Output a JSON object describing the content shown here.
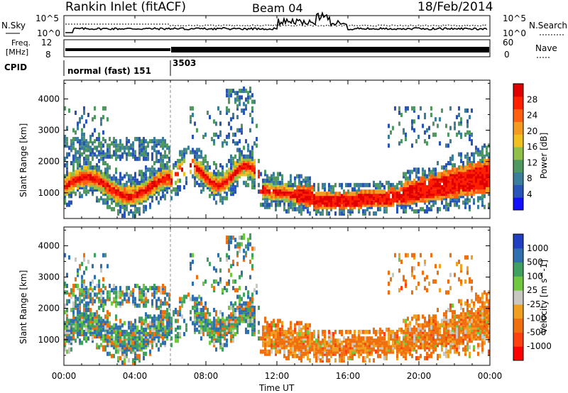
{
  "header": {
    "station": "Rankin Inlet (fitACF)",
    "beam": "Beam 04",
    "date": "18/Feb/2014"
  },
  "nsky_panel": {
    "left_label": "N.Sky",
    "right_label": "N.Search",
    "left_ticks": [
      "10^5",
      "10^0"
    ],
    "right_ticks": [
      "10^5",
      "10^0"
    ]
  },
  "freq_panel": {
    "left_label_1": "Freq.",
    "left_label_2": "[MHz]",
    "left_ticks": [
      "12",
      "8"
    ],
    "right_label": "Nave",
    "right_ticks": [
      "60",
      "0"
    ]
  },
  "cpid_panel": {
    "label": "CPID",
    "segments": [
      "normal (fast) 151",
      "3503"
    ]
  },
  "chart_data": [
    {
      "type": "heatmap",
      "title": "",
      "ylabel": "Slant Range [km]",
      "y_ticks": [
        "1000",
        "2000",
        "3000",
        "4000"
      ],
      "ylim": [
        180,
        4600
      ],
      "colorbar_label": "Power [dB]",
      "colorbar_ticks": [
        "4",
        "8",
        "12",
        "16",
        "20",
        "24",
        "28"
      ],
      "colorbar_colors": [
        "#1010ff",
        "#2a55b8",
        "#3a7e9c",
        "#4f9860",
        "#90c04a",
        "#f0c020",
        "#f59a20",
        "#ff6010",
        "#ff2000",
        "#e00000"
      ]
    },
    {
      "type": "heatmap",
      "title": "",
      "ylabel": "Slant Range [km]",
      "y_ticks": [
        "1000",
        "2000",
        "3000",
        "4000"
      ],
      "ylim": [
        180,
        4600
      ],
      "colorbar_label": "Velocity [m s^-1]",
      "colorbar_ticks": [
        "1000",
        "500",
        "100",
        "25",
        "-25",
        "-100",
        "-500",
        "-1000"
      ],
      "colorbar_colors": [
        "#2040c0",
        "#3070b0",
        "#40a060",
        "#70c840",
        "#c8c8c0",
        "#f0a020",
        "#f07010",
        "#ff4010",
        "#ff0000"
      ]
    }
  ],
  "x_axis": {
    "ticks": [
      "00:00",
      "04:00",
      "08:00",
      "12:00",
      "16:00",
      "20:00",
      "00:00"
    ],
    "label": "Time UT"
  }
}
